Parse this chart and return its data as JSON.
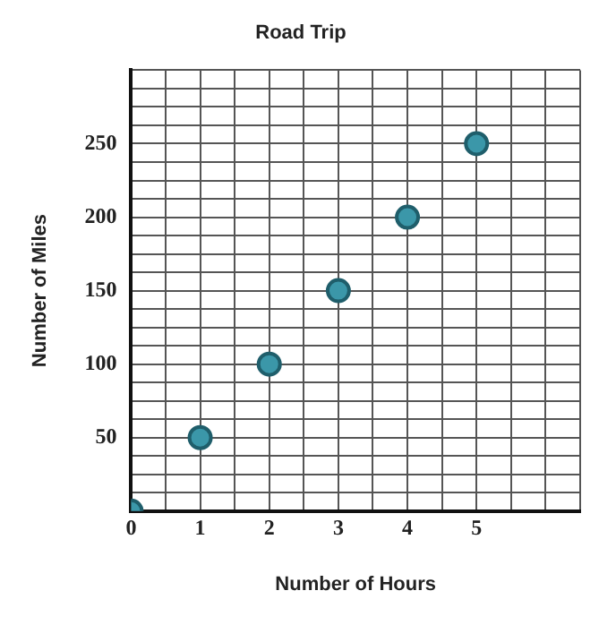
{
  "chart_data": {
    "type": "scatter",
    "title": "Road Trip",
    "xlabel": "Number of Hours",
    "ylabel": "Number of Miles",
    "x": [
      0,
      1,
      2,
      3,
      4,
      5
    ],
    "series": [
      {
        "color": "#3b97a9",
        "values": [
          0,
          50,
          100,
          150,
          200,
          250
        ]
      }
    ],
    "xlim": [
      0,
      6.5
    ],
    "ylim": [
      0,
      300
    ],
    "xticks": [
      0,
      {
        "value": 0.5,
        "label": null
      },
      1,
      {
        "value": 1.5,
        "label": null
      },
      2,
      {
        "value": 2.5,
        "label": null
      },
      3,
      {
        "value": 3.5,
        "label": null
      },
      4,
      {
        "value": 4.5,
        "label": null
      },
      5,
      {
        "value": 5.5,
        "label": null
      },
      {
        "value": 6,
        "label": null
      },
      {
        "value": 6.5,
        "label": null
      }
    ],
    "yticks": [
      {
        "value": 0,
        "label": null
      },
      {
        "value": 12.5,
        "label": null
      },
      {
        "value": 25,
        "label": null
      },
      {
        "value": 37.5,
        "label": null
      },
      50,
      {
        "value": 62.5,
        "label": null
      },
      {
        "value": 75,
        "label": null
      },
      {
        "value": 87.5,
        "label": null
      },
      100,
      {
        "value": 112.5,
        "label": null
      },
      {
        "value": 125,
        "label": null
      },
      {
        "value": 137.5,
        "label": null
      },
      150,
      {
        "value": 162.5,
        "label": null
      },
      {
        "value": 175,
        "label": null
      },
      {
        "value": 187.5,
        "label": null
      },
      200,
      {
        "value": 212.5,
        "label": null
      },
      {
        "value": 225,
        "label": null
      },
      {
        "value": 237.5,
        "label": null
      },
      250,
      {
        "value": 262.5,
        "label": null
      },
      {
        "value": 275,
        "label": null
      },
      {
        "value": 287.5,
        "label": null
      },
      {
        "value": 300,
        "label": null
      }
    ],
    "grid": true,
    "legend": false,
    "marker": "circle"
  }
}
